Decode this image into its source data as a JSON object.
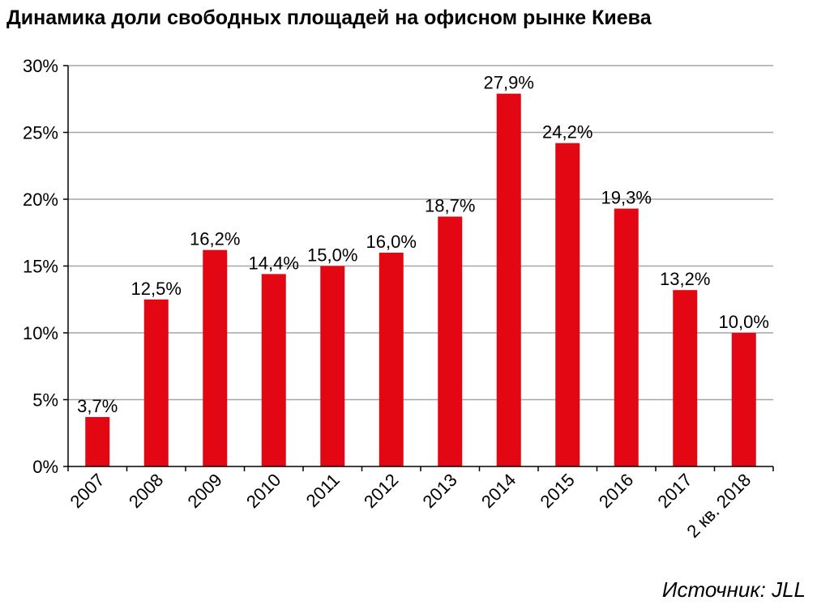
{
  "title": "Динамика доли свободных площадей на офисном рынке Киева",
  "source": "Источник: JLL",
  "chart_data": {
    "type": "bar",
    "title": "Динамика доли свободных площадей на офисном рынке Киева",
    "categories": [
      "2007",
      "2008",
      "2009",
      "2010",
      "2011",
      "2012",
      "2013",
      "2014",
      "2015",
      "2016",
      "2017",
      "2 кв. 2018"
    ],
    "values": [
      3.7,
      12.5,
      16.2,
      14.4,
      15.0,
      16.0,
      18.7,
      27.9,
      24.2,
      19.3,
      13.2,
      10.0
    ],
    "data_labels": [
      "3,7%",
      "12,5%",
      "16,2%",
      "14,4%",
      "15,0%",
      "16,0%",
      "18,7%",
      "27,9%",
      "24,2%",
      "19,3%",
      "13,2%",
      "10,0%"
    ],
    "ylim": [
      0,
      30
    ],
    "y_ticks": [
      0,
      5,
      10,
      15,
      20,
      25,
      30
    ],
    "y_tick_labels": [
      "0%",
      "5%",
      "10%",
      "15%",
      "20%",
      "25%",
      "30%"
    ],
    "grid": true,
    "legend": "none",
    "bar_color": "#e30613",
    "grid_color": "#a6a6a6"
  }
}
